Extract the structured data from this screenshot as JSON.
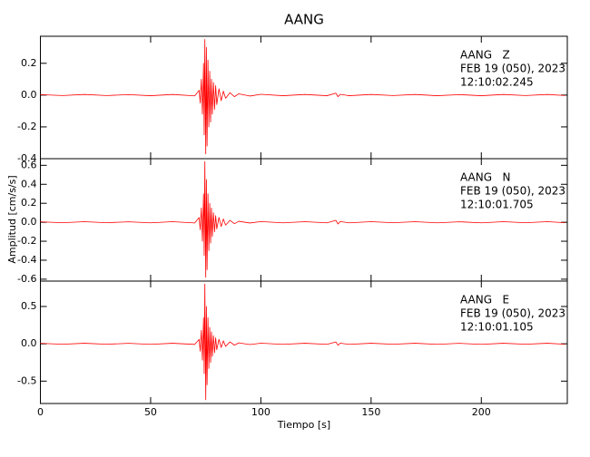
{
  "figure": {
    "title": "AANG",
    "y_label": "Amplitud [cm/s/s]",
    "x_label": "Tiempo [s]"
  },
  "chart_data": [
    {
      "type": "line",
      "annotations": [
        "AANG   Z",
        "FEB 19 (050), 2023",
        "12:10:02.245"
      ],
      "color": "#ff0000",
      "x": [
        0,
        10,
        20,
        30,
        40,
        50,
        60,
        70,
        72,
        72.5,
        73,
        73.5,
        74,
        74.3,
        74.6,
        75,
        75.3,
        75.6,
        76,
        76.4,
        76.8,
        77.2,
        77.6,
        78,
        78.5,
        79,
        79.5,
        80,
        81,
        82,
        83,
        84,
        86,
        88,
        90,
        95,
        100,
        110,
        120,
        130,
        134,
        135,
        136,
        140,
        150,
        160,
        170,
        180,
        190,
        200,
        210,
        220,
        230,
        238
      ],
      "values": [
        0.003,
        -0.003,
        0.004,
        -0.003,
        0.003,
        -0.004,
        0.004,
        -0.005,
        0.03,
        -0.05,
        0.1,
        -0.12,
        0.2,
        -0.25,
        0.35,
        -0.37,
        0.3,
        -0.32,
        0.22,
        -0.2,
        0.15,
        -0.17,
        0.1,
        -0.12,
        0.08,
        -0.09,
        0.06,
        -0.06,
        0.04,
        -0.035,
        0.025,
        -0.02,
        0.015,
        -0.01,
        0.008,
        -0.006,
        0.005,
        -0.004,
        0.004,
        -0.004,
        0.012,
        -0.01,
        0.005,
        -0.004,
        0.004,
        -0.003,
        0.004,
        -0.004,
        0.003,
        -0.004,
        0.004,
        -0.003,
        0.004,
        -0.003
      ],
      "xlim": [
        0,
        239
      ],
      "ylim": [
        -0.4,
        0.37
      ],
      "yticks": [
        0.2,
        {
          "value": 0,
          "label": "0.0"
        },
        -0.2,
        -0.4
      ]
    },
    {
      "type": "line",
      "annotations": [
        "AANG   N",
        "FEB 19 (050), 2023",
        "12:10:01.705"
      ],
      "color": "#ff0000",
      "x": [
        0,
        10,
        20,
        30,
        40,
        50,
        60,
        70,
        72,
        72.5,
        73,
        73.5,
        74,
        74.3,
        74.6,
        75,
        75.3,
        75.6,
        76,
        76.4,
        76.8,
        77.2,
        77.6,
        78,
        78.5,
        79,
        79.5,
        80,
        81,
        82,
        83,
        84,
        86,
        88,
        90,
        95,
        100,
        110,
        120,
        130,
        134,
        135,
        136,
        140,
        150,
        160,
        170,
        180,
        190,
        200,
        210,
        220,
        230,
        238
      ],
      "values": [
        0.005,
        -0.005,
        0.006,
        -0.005,
        0.005,
        -0.006,
        0.006,
        -0.007,
        0.05,
        -0.08,
        0.15,
        -0.2,
        0.3,
        -0.35,
        0.64,
        -0.58,
        0.45,
        -0.5,
        0.3,
        -0.3,
        0.2,
        -0.22,
        0.15,
        -0.15,
        0.1,
        -0.1,
        0.07,
        -0.07,
        0.05,
        -0.045,
        0.035,
        -0.03,
        0.02,
        -0.015,
        0.01,
        -0.008,
        0.007,
        -0.006,
        0.006,
        -0.006,
        0.02,
        -0.018,
        0.007,
        -0.006,
        0.006,
        -0.005,
        0.006,
        -0.006,
        0.005,
        -0.006,
        0.006,
        -0.005,
        0.006,
        -0.005
      ],
      "xlim": [
        0,
        239
      ],
      "ylim": [
        -0.62,
        0.67
      ],
      "yticks": [
        0.6,
        0.4,
        0.2,
        {
          "value": 0,
          "label": "0.0"
        },
        -0.2,
        -0.4,
        -0.6
      ]
    },
    {
      "type": "line",
      "annotations": [
        "AANG   E",
        "FEB 19 (050), 2023",
        "12:10:01.105"
      ],
      "color": "#ff0000",
      "x": [
        0,
        10,
        20,
        30,
        40,
        50,
        60,
        70,
        72,
        72.5,
        73,
        73.5,
        74,
        74.3,
        74.6,
        75,
        75.3,
        75.6,
        76,
        76.4,
        76.8,
        77.2,
        77.6,
        78,
        78.5,
        79,
        79.5,
        80,
        81,
        82,
        83,
        84,
        86,
        88,
        90,
        95,
        100,
        110,
        120,
        130,
        134,
        135,
        136,
        140,
        150,
        160,
        170,
        180,
        190,
        200,
        210,
        220,
        230,
        238
      ],
      "values": [
        0.006,
        -0.006,
        0.007,
        -0.006,
        0.006,
        -0.007,
        0.007,
        -0.008,
        0.06,
        -0.1,
        0.18,
        -0.22,
        0.35,
        -0.4,
        0.8,
        -0.75,
        0.5,
        -0.55,
        0.35,
        -0.33,
        0.22,
        -0.25,
        0.16,
        -0.17,
        0.11,
        -0.12,
        0.08,
        -0.08,
        0.06,
        -0.05,
        0.04,
        -0.035,
        0.025,
        -0.018,
        0.012,
        -0.01,
        0.008,
        -0.007,
        0.007,
        -0.007,
        0.025,
        -0.02,
        0.008,
        -0.007,
        0.007,
        -0.006,
        0.007,
        -0.007,
        0.006,
        -0.007,
        0.007,
        -0.006,
        0.007,
        -0.006
      ],
      "xlim": [
        0,
        239
      ],
      "ylim": [
        -0.8,
        0.84
      ],
      "yticks": [
        0.5,
        {
          "value": 0,
          "label": "0.0"
        },
        -0.5
      ],
      "xticks": [
        0,
        50,
        100,
        150,
        200
      ]
    }
  ]
}
